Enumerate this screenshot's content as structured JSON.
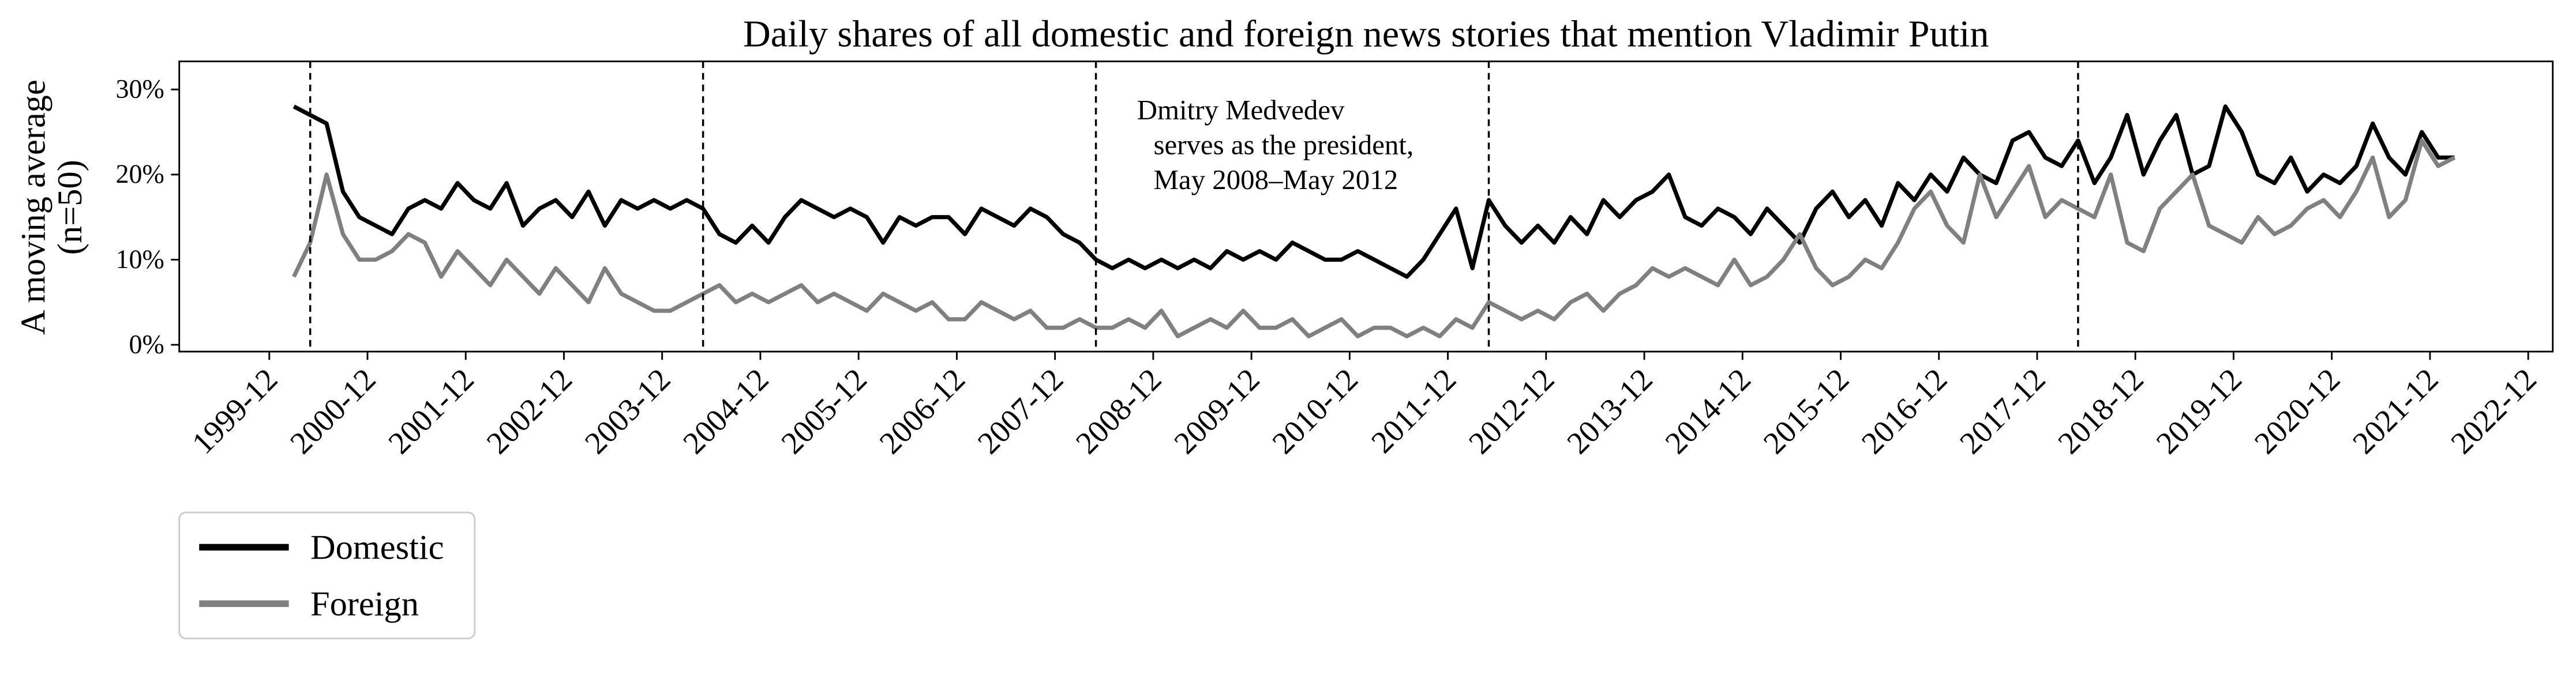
{
  "chart_data": {
    "type": "line",
    "title": "Daily shares of all domestic and foreign news stories that mention Vladimir Putin",
    "ylabel": [
      "A moving average",
      "(n=50)"
    ],
    "annotation": [
      "Dmitry Medvedev",
      "serves as the president,",
      "May 2008–May 2012"
    ],
    "vlines": [
      "2000-05",
      "2004-05",
      "2008-05",
      "2012-05",
      "2018-05"
    ],
    "xlim": [
      "1999-01",
      "2023-03"
    ],
    "xticks": [
      "1999-12",
      "2000-12",
      "2001-12",
      "2002-12",
      "2003-12",
      "2004-12",
      "2005-12",
      "2006-12",
      "2007-12",
      "2008-12",
      "2009-12",
      "2010-12",
      "2011-12",
      "2012-12",
      "2013-12",
      "2014-12",
      "2015-12",
      "2016-12",
      "2017-12",
      "2018-12",
      "2019-12",
      "2020-12",
      "2021-12",
      "2022-12"
    ],
    "ylim": [
      -0.8,
      33.3
    ],
    "yticks": [
      {
        "value": 0,
        "label": "0%"
      },
      {
        "value": 10,
        "label": "10%"
      },
      {
        "value": 20,
        "label": "20%"
      },
      {
        "value": 30,
        "label": "30%"
      }
    ],
    "legend": "lower left outside",
    "x": [
      "2000-03",
      "2000-05",
      "2000-07",
      "2000-09",
      "2000-11",
      "2001-01",
      "2001-03",
      "2001-05",
      "2001-07",
      "2001-09",
      "2001-11",
      "2002-01",
      "2002-03",
      "2002-05",
      "2002-07",
      "2002-09",
      "2002-11",
      "2003-01",
      "2003-03",
      "2003-05",
      "2003-07",
      "2003-09",
      "2003-11",
      "2004-01",
      "2004-03",
      "2004-05",
      "2004-07",
      "2004-09",
      "2004-11",
      "2005-01",
      "2005-03",
      "2005-05",
      "2005-07",
      "2005-09",
      "2005-11",
      "2006-01",
      "2006-03",
      "2006-05",
      "2006-07",
      "2006-09",
      "2006-11",
      "2007-01",
      "2007-03",
      "2007-05",
      "2007-07",
      "2007-09",
      "2007-11",
      "2008-01",
      "2008-03",
      "2008-05",
      "2008-07",
      "2008-09",
      "2008-11",
      "2009-01",
      "2009-03",
      "2009-05",
      "2009-07",
      "2009-09",
      "2009-11",
      "2010-01",
      "2010-03",
      "2010-05",
      "2010-07",
      "2010-09",
      "2010-11",
      "2011-01",
      "2011-03",
      "2011-05",
      "2011-07",
      "2011-09",
      "2011-11",
      "2012-01",
      "2012-03",
      "2012-05",
      "2012-07",
      "2012-09",
      "2012-11",
      "2013-01",
      "2013-03",
      "2013-05",
      "2013-07",
      "2013-09",
      "2013-11",
      "2014-01",
      "2014-03",
      "2014-05",
      "2014-07",
      "2014-09",
      "2014-11",
      "2015-01",
      "2015-03",
      "2015-05",
      "2015-07",
      "2015-09",
      "2015-11",
      "2016-01",
      "2016-03",
      "2016-05",
      "2016-07",
      "2016-09",
      "2016-11",
      "2017-01",
      "2017-03",
      "2017-05",
      "2017-07",
      "2017-09",
      "2017-11",
      "2018-01",
      "2018-03",
      "2018-05",
      "2018-07",
      "2018-09",
      "2018-11",
      "2019-01",
      "2019-03",
      "2019-05",
      "2019-07",
      "2019-09",
      "2019-11",
      "2020-01",
      "2020-03",
      "2020-05",
      "2020-07",
      "2020-09",
      "2020-11",
      "2021-01",
      "2021-03",
      "2021-05",
      "2021-07",
      "2021-09",
      "2021-11",
      "2022-01",
      "2022-03"
    ],
    "series": [
      {
        "name": "Domestic",
        "color": "#000000",
        "values": [
          28,
          27,
          26,
          18,
          15,
          14,
          13,
          16,
          17,
          16,
          19,
          17,
          16,
          19,
          14,
          16,
          17,
          15,
          18,
          14,
          17,
          16,
          17,
          16,
          17,
          16,
          13,
          12,
          14,
          12,
          15,
          17,
          16,
          15,
          16,
          15,
          12,
          15,
          14,
          15,
          15,
          13,
          16,
          15,
          14,
          16,
          15,
          13,
          12,
          10,
          9,
          10,
          9,
          10,
          9,
          10,
          9,
          11,
          10,
          11,
          10,
          12,
          11,
          10,
          10,
          11,
          10,
          9,
          8,
          10,
          13,
          16,
          9,
          17,
          14,
          12,
          14,
          12,
          15,
          13,
          17,
          15,
          17,
          18,
          20,
          15,
          14,
          16,
          15,
          13,
          16,
          14,
          12,
          16,
          18,
          15,
          17,
          14,
          19,
          17,
          20,
          18,
          22,
          20,
          19,
          24,
          25,
          22,
          21,
          24,
          19,
          22,
          27,
          20,
          24,
          27,
          20,
          21,
          28,
          25,
          20,
          19,
          22,
          18,
          20,
          19,
          21,
          26,
          22,
          20,
          25,
          22,
          22
        ]
      },
      {
        "name": "Foreign",
        "color": "#808080",
        "values": [
          8,
          12,
          20,
          13,
          10,
          10,
          11,
          13,
          12,
          8,
          11,
          9,
          7,
          10,
          8,
          6,
          9,
          7,
          5,
          9,
          6,
          5,
          4,
          4,
          5,
          6,
          7,
          5,
          6,
          5,
          6,
          7,
          5,
          6,
          5,
          4,
          6,
          5,
          4,
          5,
          3,
          3,
          5,
          4,
          3,
          4,
          2,
          2,
          3,
          2,
          2,
          3,
          2,
          4,
          1,
          2,
          3,
          2,
          4,
          2,
          2,
          3,
          1,
          2,
          3,
          1,
          2,
          2,
          1,
          2,
          1,
          3,
          2,
          5,
          4,
          3,
          4,
          3,
          5,
          6,
          4,
          6,
          7,
          9,
          8,
          9,
          8,
          7,
          10,
          7,
          8,
          10,
          13,
          9,
          7,
          8,
          10,
          9,
          12,
          16,
          18,
          14,
          12,
          20,
          15,
          18,
          21,
          15,
          17,
          16,
          15,
          20,
          12,
          11,
          16,
          18,
          20,
          14,
          13,
          12,
          15,
          13,
          14,
          16,
          17,
          15,
          18,
          22,
          15,
          17,
          24,
          21,
          22
        ]
      }
    ]
  }
}
